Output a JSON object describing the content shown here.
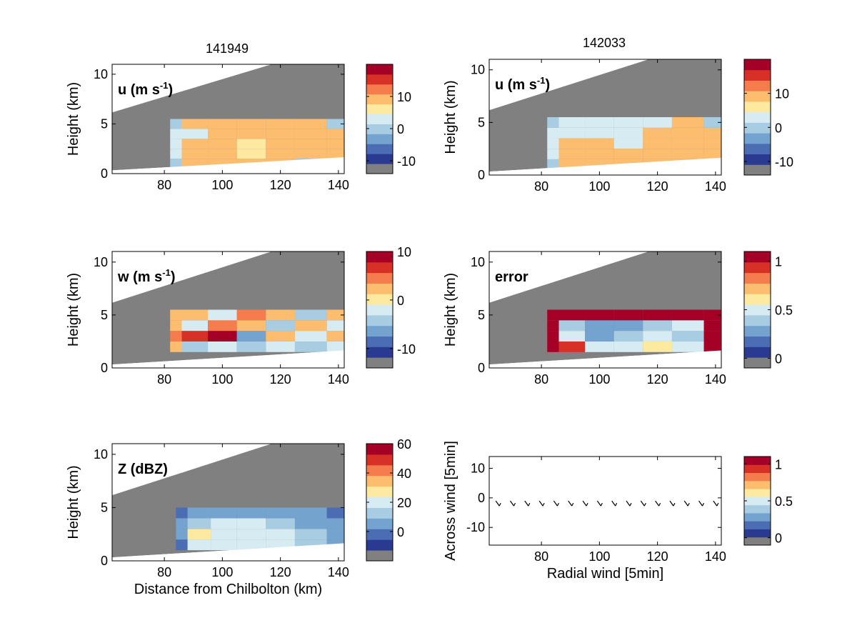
{
  "figure": {
    "title_left": "141949",
    "title_right": "142033"
  },
  "colormap": [
    "#808080",
    "#2b3a91",
    "#4a6db3",
    "#74a3cf",
    "#a8cde2",
    "#d7ecf2",
    "#fdeaa0",
    "#fdbd6e",
    "#f57c4d",
    "#d73127",
    "#a50026"
  ],
  "chart_data": [
    {
      "id": "u1",
      "type": "heatmap",
      "annotation": "u (m s",
      "annotation_sup": "-1",
      "annotation_end": ")",
      "ylabel": "Height (km)",
      "xlabel": "",
      "xlim": [
        62,
        142
      ],
      "ylim": [
        0,
        11
      ],
      "x_ticks": [
        "80",
        "100",
        "120",
        "140"
      ],
      "y_ticks": [
        "0",
        "5",
        "10"
      ],
      "colorbar": {
        "range": [
          -14,
          20
        ],
        "ticks": [
          "10",
          "0",
          "-10"
        ]
      },
      "x": [
        82,
        90,
        100,
        110,
        120,
        130,
        142
      ],
      "y": [
        1,
        2,
        3,
        4,
        5
      ],
      "values": [
        [
          0,
          8,
          8,
          8,
          8,
          0,
          0
        ],
        [
          2,
          8,
          8,
          6,
          8,
          8,
          8
        ],
        [
          3,
          8,
          8,
          6,
          8,
          8,
          8
        ],
        [
          2,
          3,
          8,
          8,
          8,
          8,
          8
        ],
        [
          0,
          8,
          8,
          8,
          8,
          8,
          0
        ]
      ]
    },
    {
      "id": "u2",
      "type": "heatmap",
      "annotation": "u (m s",
      "annotation_sup": "-1",
      "annotation_end": ")",
      "ylabel": "Height (km)",
      "xlabel": "",
      "xlim": [
        62,
        142
      ],
      "ylim": [
        0,
        11
      ],
      "x_ticks": [
        "80",
        "100",
        "120",
        "140"
      ],
      "y_ticks": [
        "0",
        "5",
        "10"
      ],
      "colorbar": {
        "range": [
          -14,
          20
        ],
        "ticks": [
          "10",
          "0",
          "-10"
        ]
      },
      "x": [
        82,
        90,
        100,
        110,
        120,
        130,
        142
      ],
      "y": [
        1,
        2,
        3,
        4,
        5
      ],
      "values": [
        [
          0,
          8,
          8,
          8,
          8,
          8,
          0
        ],
        [
          2,
          8,
          8,
          8,
          8,
          8,
          8
        ],
        [
          3,
          8,
          8,
          2,
          8,
          8,
          8
        ],
        [
          2,
          3,
          2,
          2,
          8,
          8,
          8
        ],
        [
          0,
          3,
          3,
          3,
          2,
          8,
          0
        ]
      ]
    },
    {
      "id": "w",
      "type": "heatmap",
      "annotation": "w (m s",
      "annotation_sup": "-1",
      "annotation_end": ")",
      "ylabel": "Height (km)",
      "xlabel": "",
      "xlim": [
        62,
        142
      ],
      "ylim": [
        0,
        11
      ],
      "x_ticks": [
        "80",
        "100",
        "120",
        "140"
      ],
      "y_ticks": [
        "0",
        "5",
        "10"
      ],
      "colorbar": {
        "range": [
          -14,
          10
        ],
        "ticks": [
          "10",
          "0",
          "-10"
        ]
      },
      "x": [
        82,
        90,
        100,
        110,
        120,
        130,
        142
      ],
      "y": [
        2,
        3,
        4,
        5
      ],
      "values": [
        [
          3,
          -4,
          -2,
          -5,
          -3,
          -4,
          -2
        ],
        [
          4,
          6,
          8,
          -6,
          2,
          -3,
          3
        ],
        [
          2,
          -2,
          4,
          2,
          -4,
          3,
          -2
        ],
        [
          3,
          2,
          -3,
          4,
          2,
          -5,
          3
        ]
      ]
    },
    {
      "id": "error",
      "type": "heatmap",
      "annotation": "error",
      "annotation_sup": "",
      "annotation_end": "",
      "ylabel": "Height (km)",
      "xlabel": "",
      "xlim": [
        62,
        142
      ],
      "ylim": [
        0,
        11
      ],
      "x_ticks": [
        "80",
        "100",
        "120",
        "140"
      ],
      "y_ticks": [
        "0",
        "5",
        "10"
      ],
      "colorbar": {
        "range": [
          -0.1,
          1.1
        ],
        "ticks": [
          "1",
          "0.5",
          "0"
        ]
      },
      "x": [
        82,
        90,
        100,
        110,
        120,
        130,
        142
      ],
      "y": [
        2,
        3,
        4,
        5
      ],
      "values": [
        [
          1,
          0.9,
          0.5,
          0.5,
          0.6,
          0.5,
          1
        ],
        [
          1,
          0.5,
          0.3,
          0.4,
          0.5,
          0.4,
          1
        ],
        [
          1,
          0.4,
          0.3,
          0.3,
          0.4,
          0.5,
          1
        ],
        [
          1,
          1,
          1,
          1,
          1,
          1,
          1
        ]
      ]
    },
    {
      "id": "z",
      "type": "heatmap",
      "annotation": "Z (dBZ)",
      "annotation_sup": "",
      "annotation_end": "",
      "ylabel": "Height (km)",
      "xlabel": "Distance from Chilbolton (km)",
      "xlim": [
        62,
        142
      ],
      "ylim": [
        0,
        11
      ],
      "x_ticks": [
        "80",
        "100",
        "120",
        "140"
      ],
      "y_ticks": [
        "0",
        "5",
        "10"
      ],
      "colorbar": {
        "range": [
          -20,
          60
        ],
        "ticks": [
          "60",
          "40",
          "20",
          "0"
        ]
      },
      "x": [
        84,
        92,
        100,
        110,
        120,
        130,
        142
      ],
      "y": [
        1.5,
        2.5,
        3.5,
        4.5
      ],
      "values": [
        [
          0,
          22,
          20,
          18,
          20,
          10,
          5
        ],
        [
          5,
          25,
          20,
          18,
          22,
          10,
          5
        ],
        [
          5,
          15,
          18,
          20,
          15,
          5,
          3
        ],
        [
          0,
          5,
          5,
          5,
          5,
          3,
          0
        ]
      ]
    },
    {
      "id": "wind",
      "type": "scatter",
      "annotation": "",
      "annotation_sup": "",
      "annotation_end": "",
      "ylabel": "Across wind [5min]",
      "xlabel": "Radial wind [5min]",
      "xlim": [
        62,
        142
      ],
      "ylim": [
        -16,
        14
      ],
      "x_ticks": [
        "80",
        "100",
        "120",
        "140"
      ],
      "y_ticks": [
        "10",
        "0",
        "-10"
      ],
      "colorbar": {
        "range": [
          -0.1,
          1.1
        ],
        "ticks": [
          "1",
          "0.5",
          "0"
        ]
      },
      "x": [
        65,
        70,
        75,
        80,
        85,
        90,
        95,
        100,
        105,
        110,
        115,
        120,
        125,
        130,
        135,
        140
      ],
      "y": [
        -2,
        -2,
        -2,
        -2,
        -2,
        -2,
        -2,
        -2,
        -2,
        -2,
        -2,
        -2,
        -2,
        -2,
        -2,
        -2
      ]
    }
  ]
}
